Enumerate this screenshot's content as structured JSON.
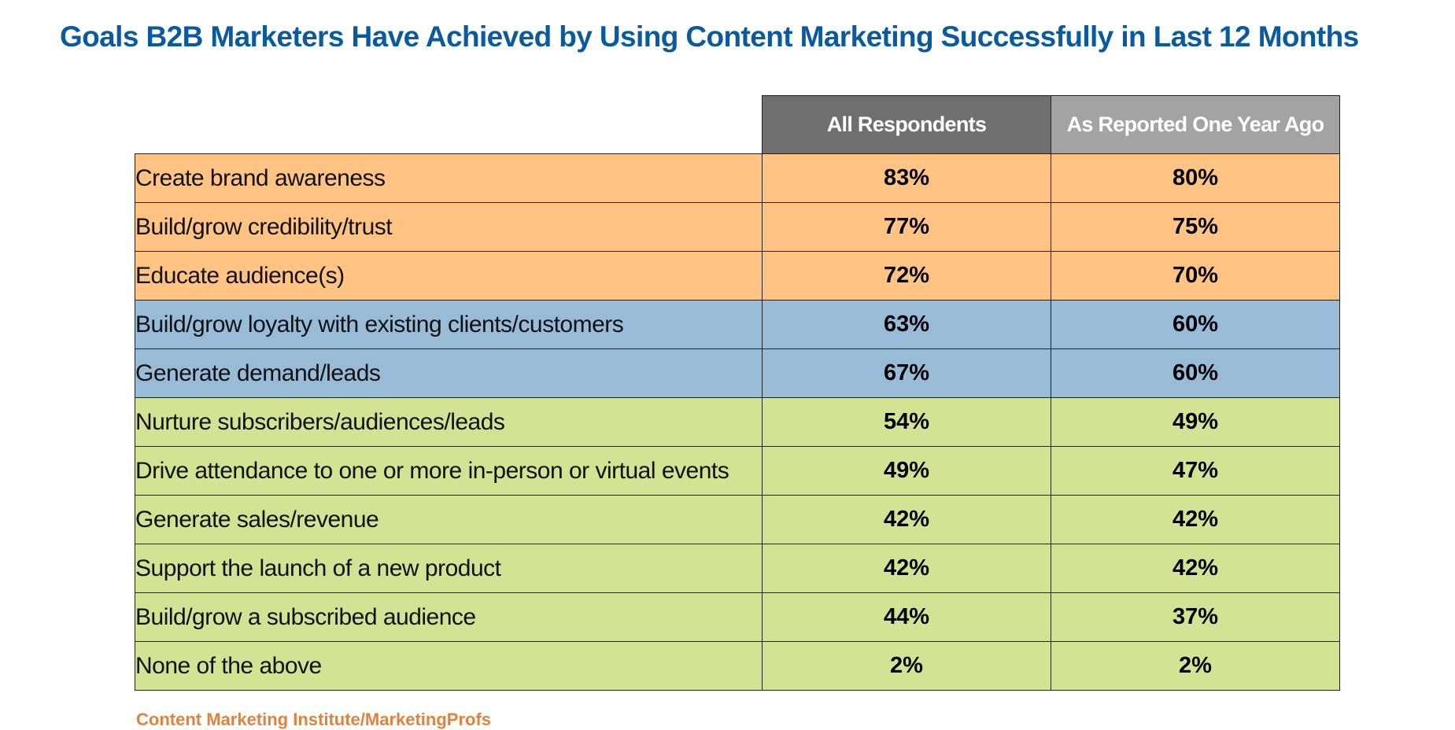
{
  "chart_data": {
    "type": "table",
    "title": "Goals B2B Marketers Have Achieved by Using Content Marketing Successfully in Last 12 Months",
    "columns": [
      "All  Respondents",
      "As Reported One Year Ago"
    ],
    "rows": [
      {
        "label": "Create brand awareness",
        "values": [
          "83%",
          "80%"
        ],
        "group": "orange"
      },
      {
        "label": "Build/grow credibility/trust",
        "values": [
          "77%",
          "75%"
        ],
        "group": "orange"
      },
      {
        "label": "Educate audience(s)",
        "values": [
          "72%",
          "70%"
        ],
        "group": "orange"
      },
      {
        "label": "Build/grow loyalty with existing clients/customers",
        "values": [
          "63%",
          "60%"
        ],
        "group": "blue"
      },
      {
        "label": "Generate demand/leads",
        "values": [
          "67%",
          "60%"
        ],
        "group": "blue"
      },
      {
        "label": "Nurture subscribers/audiences/leads",
        "values": [
          "54%",
          "49%"
        ],
        "group": "green"
      },
      {
        "label": "Drive attendance to one or more in-person or virtual events",
        "values": [
          "49%",
          "47%"
        ],
        "group": "green"
      },
      {
        "label": "Generate sales/revenue",
        "values": [
          "42%",
          "42%"
        ],
        "group": "green"
      },
      {
        "label": "Support the launch of a new product",
        "values": [
          "42%",
          "42%"
        ],
        "group": "green"
      },
      {
        "label": "Build/grow a subscribed audience",
        "values": [
          "44%",
          "37%"
        ],
        "group": "green"
      },
      {
        "label": "None of the above",
        "values": [
          "2%",
          "2%"
        ],
        "group": "green"
      }
    ],
    "colors": {
      "title": "#0a5aa0",
      "header_current": "#6f6f6f",
      "header_prior": "#a3a3a3",
      "orange": "#ffc384",
      "blue": "#98bbd8",
      "green": "#d3e293"
    }
  },
  "footer": {
    "source": "Content Marketing Institute/MarketingProfs"
  }
}
